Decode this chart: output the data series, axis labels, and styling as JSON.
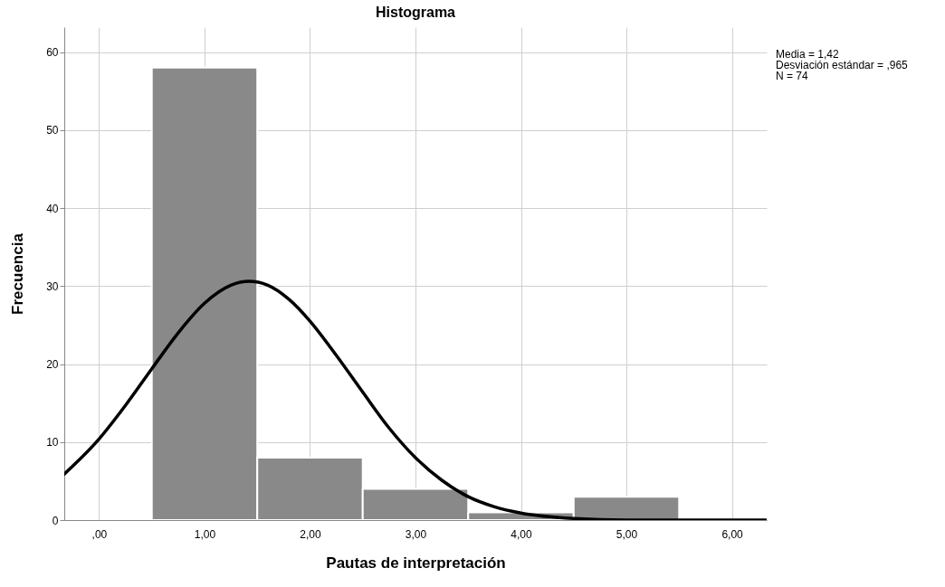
{
  "chart_data": {
    "type": "histogram",
    "title": "Histograma",
    "xlabel": "Pautas de interpretación",
    "ylabel": "Frecuencia",
    "bins": [
      0.5,
      1.5,
      2.5,
      3.5,
      4.5,
      5.5
    ],
    "values": [
      58,
      8,
      4,
      1,
      3
    ],
    "color": "#898989",
    "series": [
      {
        "type": "line",
        "color": "#000000",
        "x": [
          -0.33,
          0,
          0.25,
          0.5,
          0.75,
          1,
          1.25,
          1.42,
          1.6,
          1.8,
          2,
          2.25,
          2.5,
          2.75,
          3,
          3.25,
          3.5,
          3.75,
          4,
          4.5,
          5,
          5.5,
          6,
          6.33
        ],
        "values": [
          5.9,
          10.4,
          14.7,
          19.4,
          24.0,
          27.8,
          30.1,
          30.6,
          30.1,
          28.3,
          25.5,
          21.1,
          16.4,
          11.8,
          8.0,
          5.1,
          3.0,
          1.7,
          0.9,
          0.2,
          0,
          0,
          0,
          0
        ]
      }
    ],
    "xlim": [
      -0.33,
      6.33
    ],
    "ylim": [
      0,
      63.2
    ],
    "xticks": [
      {
        "value": 0,
        "label": ",00"
      },
      {
        "value": 1,
        "label": "1,00"
      },
      {
        "value": 2,
        "label": "2,00"
      },
      {
        "value": 3,
        "label": "3,00"
      },
      {
        "value": 4,
        "label": "4,00"
      },
      {
        "value": 5,
        "label": "5,00"
      },
      {
        "value": 6,
        "label": "6,00"
      }
    ],
    "yticks": [
      0,
      10,
      20,
      30,
      40,
      50,
      60
    ],
    "grid": true,
    "marker": "none",
    "line_style": "solid",
    "annotations": [
      "Media = 1,42",
      "Desviación estándar = ,965",
      "N = 74"
    ]
  }
}
